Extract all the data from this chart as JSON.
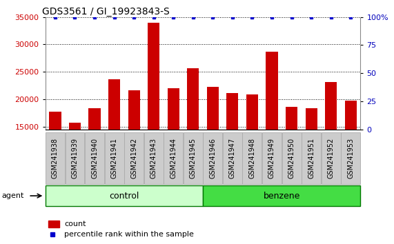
{
  "title": "GDS3561 / GI_19923843-S",
  "samples": [
    "GSM241938",
    "GSM241939",
    "GSM241940",
    "GSM241941",
    "GSM241942",
    "GSM241943",
    "GSM241944",
    "GSM241945",
    "GSM241946",
    "GSM241947",
    "GSM241948",
    "GSM241949",
    "GSM241950",
    "GSM241951",
    "GSM241952",
    "GSM241953"
  ],
  "counts": [
    17700,
    15700,
    18300,
    23600,
    21600,
    34000,
    22000,
    25700,
    22200,
    21100,
    20900,
    28700,
    18600,
    18300,
    23100,
    19800
  ],
  "percentile_ranks": [
    100,
    100,
    100,
    100,
    100,
    100,
    100,
    100,
    100,
    100,
    100,
    100,
    100,
    100,
    100,
    100
  ],
  "bar_color": "#cc0000",
  "dot_color": "#0000cc",
  "ylim_left": [
    14500,
    35000
  ],
  "yticks_left": [
    15000,
    20000,
    25000,
    30000,
    35000
  ],
  "ylim_right": [
    0,
    100
  ],
  "yticks_right": [
    0,
    25,
    50,
    75,
    100
  ],
  "ylabel_right_color": "#0000bb",
  "ylabel_left_color": "#cc0000",
  "agent_label": "agent",
  "legend_count_label": "count",
  "legend_pct_label": "percentile rank within the sample",
  "bg_color": "#ffffff",
  "plot_bg_color": "#ffffff",
  "tick_label_fontsize": 7,
  "title_fontsize": 10,
  "dotted_grid_color": "#000000",
  "group_label_fontsize": 9,
  "control_color": "#ccffcc",
  "benzene_color": "#44dd44",
  "sample_box_color": "#cccccc",
  "sample_box_edge": "#aaaaaa"
}
